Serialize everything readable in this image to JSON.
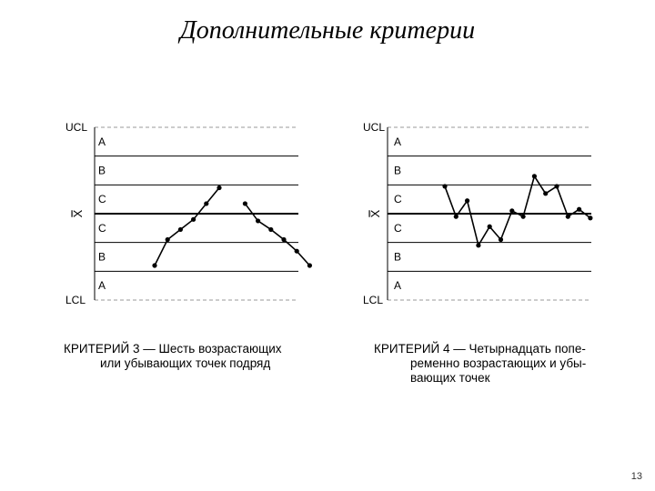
{
  "title": "Дополнительные критерии",
  "charts": [
    {
      "zone_labels": {
        "ucl": "UCL",
        "a_top": "A",
        "b_top": "B",
        "c_top": "C",
        "center": "X̿",
        "c_bot": "C",
        "b_bot": "B",
        "a_bot": "A",
        "lcl": "LCL"
      },
      "caption": {
        "head": "КРИТЕРИЙ 3 — Шесть возрастающих",
        "line2": "или убывающих точек подряд",
        "line3": ""
      }
    },
    {
      "zone_labels": {
        "ucl": "UCL",
        "a_top": "A",
        "b_top": "B",
        "c_top": "C",
        "center": "X̿",
        "c_bot": "C",
        "b_bot": "B",
        "a_bot": "A",
        "lcl": "LCL"
      },
      "caption": {
        "head": "КРИТЕРИЙ 4 — Четырнадцать попе-",
        "line2": "ременно возрастающих и убы-",
        "line3": "вающих точек"
      }
    }
  ],
  "chart_data": [
    {
      "type": "line",
      "title": "",
      "xlabel": "",
      "ylabel": "",
      "y_zone_scale": "-3 = LCL, 0 = center line, +3 = UCL",
      "ylim": [
        -3,
        3
      ],
      "series": [
        {
          "values": [
            {
              "x": 1,
              "y": -1.8
            },
            {
              "x": 2,
              "y": -0.9
            },
            {
              "x": 3,
              "y": -0.55
            },
            {
              "x": 4,
              "y": -0.2
            },
            {
              "x": 5,
              "y": 0.35
            },
            {
              "x": 6,
              "y": 0.9
            }
          ]
        },
        {
          "values": [
            {
              "x": 8,
              "y": 0.35
            },
            {
              "x": 9,
              "y": -0.25
            },
            {
              "x": 10,
              "y": -0.55
            },
            {
              "x": 11,
              "y": -0.9
            },
            {
              "x": 12,
              "y": -1.3
            },
            {
              "x": 13,
              "y": -1.8
            }
          ]
        }
      ]
    },
    {
      "type": "line",
      "title": "",
      "xlabel": "",
      "ylabel": "",
      "y_zone_scale": "-3 = LCL, 0 = center line, +3 = UCL",
      "ylim": [
        -3,
        3
      ],
      "series": [
        {
          "values": [
            {
              "x": 1,
              "y": 0.95
            },
            {
              "x": 2,
              "y": -0.1
            },
            {
              "x": 3,
              "y": 0.45
            },
            {
              "x": 4,
              "y": -1.1
            },
            {
              "x": 5,
              "y": -0.45
            },
            {
              "x": 6,
              "y": -0.9
            },
            {
              "x": 7,
              "y": 0.1
            },
            {
              "x": 8,
              "y": -0.1
            },
            {
              "x": 9,
              "y": 1.3
            },
            {
              "x": 10,
              "y": 0.7
            },
            {
              "x": 11,
              "y": 0.95
            },
            {
              "x": 12,
              "y": -0.1
            },
            {
              "x": 13,
              "y": 0.15
            },
            {
              "x": 14,
              "y": -0.15
            }
          ]
        }
      ]
    }
  ],
  "footer": {
    "slide_number": "13"
  }
}
